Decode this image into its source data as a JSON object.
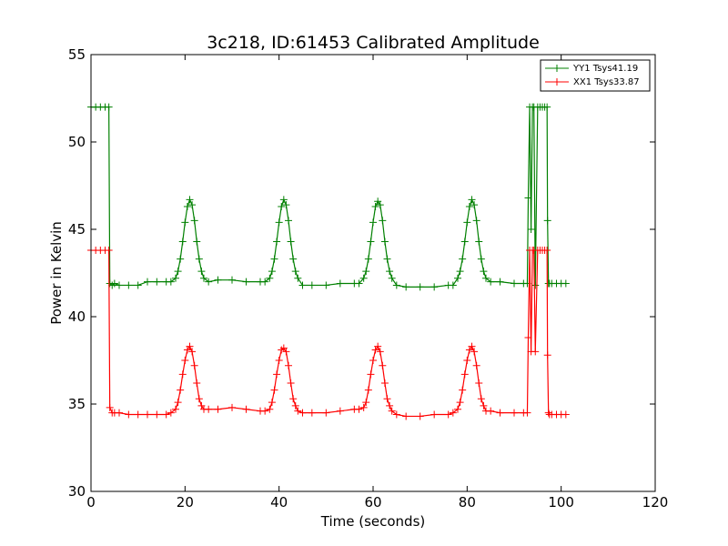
{
  "chart_data": {
    "type": "line",
    "title": "3c218, ID:61453 Calibrated Amplitude",
    "xlabel": "Time (seconds)",
    "ylabel": "Power in Kelvin",
    "xlim": [
      0,
      120
    ],
    "ylim": [
      30,
      55
    ],
    "x_ticks": [
      "0",
      "20",
      "40",
      "60",
      "80",
      "100",
      "120"
    ],
    "y_ticks": [
      "30",
      "35",
      "40",
      "45",
      "50",
      "55"
    ],
    "x_tick_values": [
      0,
      20,
      40,
      60,
      80,
      100,
      120
    ],
    "y_tick_values": [
      30,
      35,
      40,
      45,
      50,
      55
    ],
    "grid": false,
    "legend_position": "top-right",
    "marker": "+",
    "series": [
      {
        "name": "YY1 Tsys41.19",
        "color": "#008000",
        "x": [
          0,
          1,
          2,
          3,
          3.8,
          4,
          4.5,
          5,
          6,
          8,
          10,
          12,
          14,
          16,
          17,
          18,
          18.5,
          19,
          19.5,
          20,
          20.5,
          21,
          21.5,
          22,
          22.5,
          23,
          23.5,
          24,
          25,
          27,
          30,
          33,
          36,
          37,
          38,
          38.5,
          39,
          39.5,
          40,
          40.5,
          41,
          41.5,
          42,
          42.5,
          43,
          43.5,
          44,
          45,
          47,
          50,
          53,
          56,
          57,
          58,
          58.5,
          59,
          59.5,
          60,
          60.5,
          61,
          61.5,
          62,
          62.5,
          63,
          63.5,
          64,
          65,
          67,
          70,
          73,
          76,
          77,
          78,
          78.5,
          79,
          79.5,
          80,
          80.5,
          81,
          81.5,
          82,
          82.5,
          83,
          83.5,
          84,
          85,
          87,
          90,
          92,
          92.8,
          93,
          93.3,
          93.6,
          93.9,
          94.2,
          94.5,
          95,
          95.5,
          96,
          96.5,
          97,
          97.1,
          97.3,
          97.5,
          98,
          99,
          100,
          101
        ],
        "y": [
          52.0,
          52.0,
          52.0,
          52.0,
          52.0,
          41.9,
          41.8,
          41.9,
          41.8,
          41.8,
          41.8,
          42.0,
          42.0,
          42.0,
          42.0,
          42.2,
          42.6,
          43.3,
          44.3,
          45.4,
          46.3,
          46.7,
          46.4,
          45.5,
          44.3,
          43.3,
          42.6,
          42.2,
          42.0,
          42.1,
          42.1,
          42.0,
          42.0,
          42.0,
          42.2,
          42.6,
          43.3,
          44.3,
          45.4,
          46.3,
          46.7,
          46.4,
          45.5,
          44.3,
          43.3,
          42.6,
          42.2,
          41.8,
          41.8,
          41.8,
          41.9,
          41.9,
          41.9,
          42.2,
          42.6,
          43.3,
          44.3,
          45.4,
          46.3,
          46.6,
          46.4,
          45.5,
          44.3,
          43.3,
          42.6,
          42.2,
          41.8,
          41.7,
          41.7,
          41.7,
          41.8,
          41.8,
          42.2,
          42.6,
          43.3,
          44.3,
          45.4,
          46.3,
          46.7,
          46.4,
          45.5,
          44.3,
          43.3,
          42.6,
          42.2,
          42.0,
          42.0,
          41.9,
          41.9,
          41.9,
          46.8,
          52.0,
          45.0,
          52.0,
          52.0,
          41.8,
          52.0,
          52.0,
          52.0,
          52.0,
          52.0,
          45.5,
          41.9,
          41.9,
          41.9,
          41.9,
          41.9,
          41.9
        ]
      },
      {
        "name": "XX1 Tsys33.87",
        "color": "#ff0000",
        "x": [
          0,
          1,
          2,
          3,
          3.8,
          4,
          4.5,
          5,
          6,
          8,
          10,
          12,
          14,
          16,
          17,
          18,
          18.5,
          19,
          19.5,
          20,
          20.5,
          21,
          21.5,
          22,
          22.5,
          23,
          23.5,
          24,
          25,
          27,
          30,
          33,
          36,
          37,
          38,
          38.5,
          39,
          39.5,
          40,
          40.5,
          41,
          41.5,
          42,
          42.5,
          43,
          43.5,
          44,
          45,
          47,
          50,
          53,
          56,
          57,
          58,
          58.5,
          59,
          59.5,
          60,
          60.5,
          61,
          61.5,
          62,
          62.5,
          63,
          63.5,
          64,
          65,
          67,
          70,
          73,
          76,
          77,
          78,
          78.5,
          79,
          79.5,
          80,
          80.5,
          81,
          81.5,
          82,
          82.5,
          83,
          83.5,
          84,
          85,
          87,
          90,
          92,
          92.8,
          93,
          93.3,
          93.6,
          93.9,
          94.2,
          94.5,
          95,
          95.5,
          96,
          96.5,
          97,
          97.1,
          97.3,
          97.5,
          98,
          99,
          100,
          101
        ],
        "y": [
          43.8,
          43.8,
          43.8,
          43.8,
          43.8,
          34.8,
          34.5,
          34.5,
          34.5,
          34.4,
          34.4,
          34.4,
          34.4,
          34.4,
          34.5,
          34.7,
          35.1,
          35.8,
          36.7,
          37.5,
          38.1,
          38.3,
          38.0,
          37.2,
          36.2,
          35.3,
          34.9,
          34.7,
          34.7,
          34.7,
          34.8,
          34.7,
          34.6,
          34.6,
          34.7,
          35.1,
          35.8,
          36.7,
          37.5,
          38.1,
          38.2,
          38.0,
          37.2,
          36.2,
          35.3,
          34.9,
          34.6,
          34.5,
          34.5,
          34.5,
          34.6,
          34.7,
          34.7,
          34.8,
          35.1,
          35.8,
          36.7,
          37.5,
          38.1,
          38.3,
          38.0,
          37.2,
          36.2,
          35.3,
          34.9,
          34.6,
          34.4,
          34.3,
          34.3,
          34.4,
          34.4,
          34.5,
          34.7,
          35.1,
          35.8,
          36.7,
          37.5,
          38.1,
          38.3,
          38.0,
          37.2,
          36.2,
          35.3,
          34.9,
          34.6,
          34.6,
          34.5,
          34.5,
          34.5,
          34.5,
          38.8,
          43.8,
          38.0,
          43.8,
          43.8,
          38.0,
          43.8,
          43.8,
          43.8,
          43.8,
          43.8,
          37.8,
          34.5,
          34.4,
          34.4,
          34.4,
          34.4,
          34.4
        ]
      }
    ]
  }
}
